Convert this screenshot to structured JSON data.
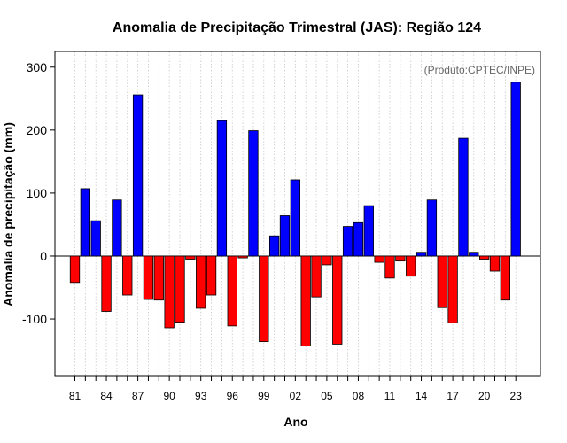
{
  "chart_data": {
    "type": "bar",
    "title": "Anomalia de Precipitação Trimestral (JAS): Região 124",
    "xlabel": "Ano",
    "ylabel": "Anomalia de precipitação (mm)",
    "credit": "(Produto:CPTEC/INPE)",
    "ylim": [
      -190,
      325
    ],
    "yticks": [
      300,
      200,
      100,
      0,
      -100
    ],
    "ytick_labels": [
      "300",
      "200",
      "100",
      "0",
      "-100"
    ],
    "xtick_labels": [
      "81",
      "84",
      "87",
      "90",
      "93",
      "96",
      "99",
      "02",
      "05",
      "08",
      "11",
      "14",
      "17",
      "20",
      "23"
    ],
    "xtick_years": [
      1981,
      1984,
      1987,
      1990,
      1993,
      1996,
      1999,
      2002,
      2005,
      2008,
      2011,
      2014,
      2017,
      2020,
      2023
    ],
    "grid": "vertical dotted",
    "colors": {
      "positive": "#0000ff",
      "negative": "#ff0000"
    },
    "categories": [
      1981,
      1982,
      1983,
      1984,
      1985,
      1986,
      1987,
      1988,
      1989,
      1990,
      1991,
      1992,
      1993,
      1994,
      1995,
      1996,
      1997,
      1998,
      1999,
      2000,
      2001,
      2002,
      2003,
      2004,
      2005,
      2006,
      2007,
      2008,
      2009,
      2010,
      2011,
      2012,
      2013,
      2014,
      2015,
      2016,
      2017,
      2018,
      2019,
      2020,
      2021,
      2022,
      2023
    ],
    "values": [
      -42,
      107,
      56,
      -88,
      89,
      -62,
      256,
      -69,
      -70,
      -114,
      -105,
      -5,
      -83,
      -62,
      215,
      -111,
      -3,
      199,
      -136,
      32,
      64,
      121,
      -143,
      -65,
      -14,
      -140,
      47,
      53,
      80,
      -10,
      -35,
      -8,
      -32,
      6,
      89,
      -82,
      -106,
      187,
      6,
      -5,
      -24,
      -70,
      276
    ]
  }
}
